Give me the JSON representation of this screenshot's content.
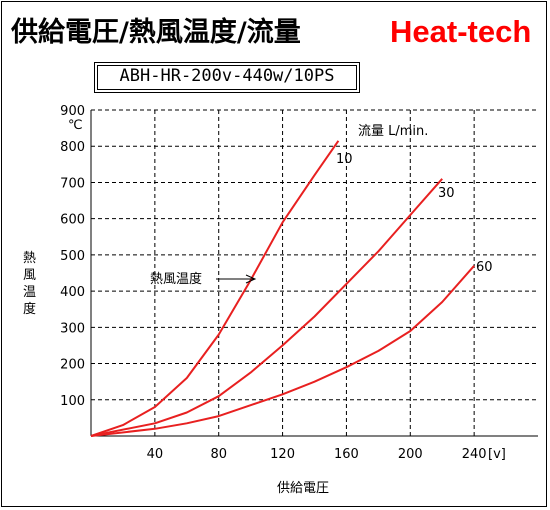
{
  "header": {
    "title": "供給電圧/熱風温度/流量",
    "brand": "Heat-tech",
    "model": "ABH-HR-200v-440w/10PS"
  },
  "colors": {
    "series": "#e82020",
    "brand": "#ff0000",
    "grid": "#000000"
  },
  "chart_data": {
    "type": "line",
    "title": "供給電圧/熱風温度/流量",
    "subtitle": "ABH-HR-200v-440w/10PS",
    "xlabel": "供給電圧",
    "xunit": "[v]",
    "ylabel": "熱風温度",
    "yunit": "℃",
    "xlim": [
      0,
      280
    ],
    "ylim": [
      0,
      900
    ],
    "xticks": [
      40,
      80,
      120,
      160,
      200,
      240
    ],
    "yticks": [
      100,
      200,
      300,
      400,
      500,
      600,
      700,
      800,
      900
    ],
    "grid": true,
    "legend_title": "流量 L/min.",
    "annotation": "熱風温度",
    "series": [
      {
        "name": "10",
        "x": [
          0,
          20,
          40,
          60,
          80,
          100,
          120,
          140,
          155
        ],
        "y": [
          0,
          30,
          80,
          160,
          280,
          430,
          590,
          720,
          815
        ]
      },
      {
        "name": "30",
        "x": [
          0,
          40,
          60,
          80,
          100,
          120,
          140,
          160,
          180,
          200,
          220
        ],
        "y": [
          0,
          35,
          65,
          110,
          175,
          250,
          330,
          420,
          510,
          610,
          710
        ]
      },
      {
        "name": "60",
        "x": [
          0,
          40,
          60,
          80,
          100,
          120,
          140,
          160,
          180,
          200,
          220,
          240
        ],
        "y": [
          0,
          20,
          35,
          55,
          85,
          115,
          150,
          190,
          235,
          290,
          370,
          470
        ]
      }
    ]
  }
}
